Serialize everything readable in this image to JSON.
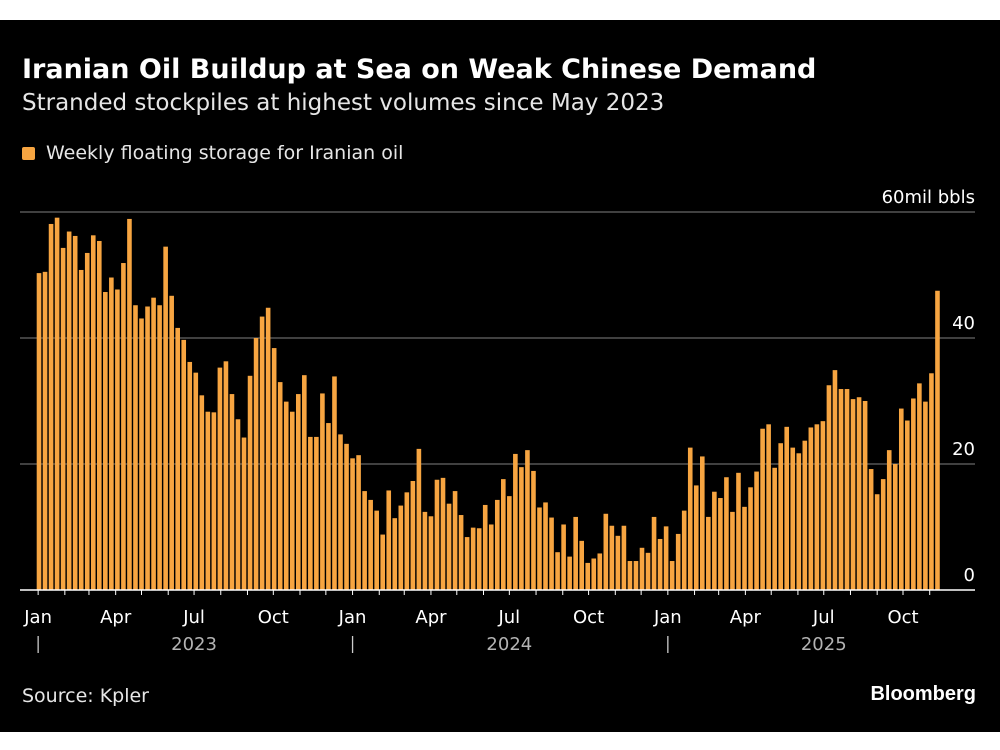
{
  "title": "Iranian Oil Buildup at Sea on Weak Chinese Demand",
  "subtitle": "Stranded stockpiles at highest volumes since May 2023",
  "source": "Source: Kpler",
  "brand": "Bloomberg",
  "colors": {
    "bar": "#f7a541",
    "background": "#000000",
    "grid": "#555555",
    "text": "#ffffff",
    "year_text": "#b3b3b3"
  },
  "chart_data": {
    "type": "bar",
    "legend": {
      "placement": "top-left",
      "entries": [
        "Weekly floating storage for Iranian oil"
      ]
    },
    "series": [
      {
        "name": "Weekly floating storage for Iranian oil"
      }
    ],
    "yunit_label": "60mil bbls",
    "ylim": [
      0,
      60
    ],
    "yticks": [
      {
        "value": 0,
        "label": "0"
      },
      {
        "value": 20,
        "label": "20"
      },
      {
        "value": 40,
        "label": "40"
      },
      {
        "value": 60,
        "label": "60mil bbls"
      }
    ],
    "grid": true,
    "yaxis_position": "right",
    "xticks": [
      {
        "date": "2023-01-01",
        "label": "Jan"
      },
      {
        "date": "2023-04-01",
        "label": "Apr"
      },
      {
        "date": "2023-07-01",
        "label": "Jul"
      },
      {
        "date": "2023-10-01",
        "label": "Oct"
      },
      {
        "date": "2024-01-01",
        "label": "Jan"
      },
      {
        "date": "2024-04-01",
        "label": "Apr"
      },
      {
        "date": "2024-07-01",
        "label": "Jul"
      },
      {
        "date": "2024-10-01",
        "label": "Oct"
      },
      {
        "date": "2025-01-01",
        "label": "Jan"
      },
      {
        "date": "2025-04-01",
        "label": "Apr"
      },
      {
        "date": "2025-07-01",
        "label": "Jul"
      },
      {
        "date": "2025-10-01",
        "label": "Oct"
      }
    ],
    "years": [
      {
        "label": "2023",
        "date": "2023-07-01"
      },
      {
        "label": "2024",
        "date": "2024-07-01"
      },
      {
        "label": "2025",
        "date": "2025-07-01"
      }
    ],
    "year_separators": [
      "2023-01-01",
      "2024-01-01",
      "2025-01-01"
    ],
    "x": [
      "2023-01-02",
      "2023-01-09",
      "2023-01-16",
      "2023-01-23",
      "2023-01-30",
      "2023-02-06",
      "2023-02-13",
      "2023-02-20",
      "2023-02-27",
      "2023-03-06",
      "2023-03-13",
      "2023-03-20",
      "2023-03-27",
      "2023-04-03",
      "2023-04-10",
      "2023-04-17",
      "2023-04-24",
      "2023-05-01",
      "2023-05-08",
      "2023-05-15",
      "2023-05-22",
      "2023-05-29",
      "2023-06-05",
      "2023-06-12",
      "2023-06-19",
      "2023-06-26",
      "2023-07-03",
      "2023-07-10",
      "2023-07-17",
      "2023-07-24",
      "2023-07-31",
      "2023-08-07",
      "2023-08-14",
      "2023-08-21",
      "2023-08-28",
      "2023-09-04",
      "2023-09-11",
      "2023-09-18",
      "2023-09-25",
      "2023-10-02",
      "2023-10-09",
      "2023-10-16",
      "2023-10-23",
      "2023-10-30",
      "2023-11-06",
      "2023-11-13",
      "2023-11-20",
      "2023-11-27",
      "2023-12-04",
      "2023-12-11",
      "2023-12-18",
      "2023-12-25",
      "2024-01-01",
      "2024-01-08",
      "2024-01-15",
      "2024-01-22",
      "2024-01-29",
      "2024-02-05",
      "2024-02-12",
      "2024-02-19",
      "2024-02-26",
      "2024-03-04",
      "2024-03-11",
      "2024-03-18",
      "2024-03-25",
      "2024-04-01",
      "2024-04-08",
      "2024-04-15",
      "2024-04-22",
      "2024-04-29",
      "2024-05-06",
      "2024-05-13",
      "2024-05-20",
      "2024-05-27",
      "2024-06-03",
      "2024-06-10",
      "2024-06-17",
      "2024-06-24",
      "2024-07-01",
      "2024-07-08",
      "2024-07-15",
      "2024-07-22",
      "2024-07-29",
      "2024-08-05",
      "2024-08-12",
      "2024-08-19",
      "2024-08-26",
      "2024-09-02",
      "2024-09-09",
      "2024-09-16",
      "2024-09-23",
      "2024-09-30",
      "2024-10-07",
      "2024-10-14",
      "2024-10-21",
      "2024-10-28",
      "2024-11-04",
      "2024-11-11",
      "2024-11-18",
      "2024-11-25",
      "2024-12-02",
      "2024-12-09",
      "2024-12-16",
      "2024-12-23",
      "2024-12-30",
      "2025-01-06",
      "2025-01-13",
      "2025-01-20",
      "2025-01-27",
      "2025-02-03",
      "2025-02-10",
      "2025-02-17",
      "2025-02-24",
      "2025-03-03",
      "2025-03-10",
      "2025-03-17",
      "2025-03-24",
      "2025-03-31",
      "2025-04-07",
      "2025-04-14",
      "2025-04-21",
      "2025-04-28",
      "2025-05-05",
      "2025-05-12",
      "2025-05-19",
      "2025-05-26",
      "2025-06-02",
      "2025-06-09",
      "2025-06-16",
      "2025-06-23",
      "2025-06-30",
      "2025-07-07",
      "2025-07-14",
      "2025-07-21",
      "2025-07-28",
      "2025-08-04",
      "2025-08-11",
      "2025-08-18",
      "2025-08-25",
      "2025-09-01",
      "2025-09-08",
      "2025-09-15",
      "2025-09-22",
      "2025-09-29",
      "2025-10-06",
      "2025-10-13",
      "2025-10-20",
      "2025-10-27",
      "2025-11-03",
      "2025-11-10"
    ],
    "values": [
      50.3,
      50.5,
      58.1,
      59.1,
      54.3,
      56.9,
      56.2,
      50.8,
      53.5,
      56.3,
      55.4,
      47.3,
      49.6,
      47.7,
      51.9,
      58.9,
      45.2,
      43.1,
      45.0,
      46.4,
      45.2,
      54.5,
      46.7,
      41.6,
      39.7,
      36.2,
      34.5,
      30.9,
      28.3,
      28.2,
      35.3,
      36.3,
      31.1,
      27.1,
      24.2,
      34.0,
      40.0,
      43.4,
      44.8,
      38.4,
      33.0,
      29.9,
      28.3,
      31.1,
      34.1,
      24.3,
      24.3,
      31.2,
      26.5,
      33.9,
      24.7,
      23.2,
      20.9,
      21.4,
      15.7,
      14.3,
      12.6,
      8.8,
      15.8,
      11.4,
      13.4,
      15.5,
      17.3,
      22.4,
      12.4,
      11.7,
      17.5,
      17.8,
      13.7,
      15.7,
      11.9,
      8.4,
      9.9,
      9.8,
      13.5,
      10.4,
      14.3,
      17.6,
      14.9,
      21.6,
      19.5,
      22.2,
      18.9,
      13.1,
      13.9,
      11.5,
      6.0,
      10.4,
      5.3,
      11.6,
      7.8,
      4.3,
      5.0,
      5.8,
      12.1,
      10.2,
      8.6,
      10.2,
      4.6,
      4.6,
      6.7,
      5.9,
      11.6,
      8.1,
      10.1,
      4.6,
      8.9,
      12.6,
      22.6,
      16.6,
      21.2,
      11.6,
      15.6,
      14.6,
      17.9,
      12.4,
      18.6,
      13.2,
      16.3,
      18.8,
      25.6,
      26.3,
      19.4,
      23.3,
      25.9,
      22.6,
      21.7,
      23.7,
      25.8,
      26.3,
      26.8,
      32.5,
      34.9,
      31.9,
      31.9,
      30.3,
      30.6,
      30.0,
      19.2,
      15.2,
      17.6,
      22.2,
      20.0,
      28.8,
      26.9,
      30.4,
      32.8,
      29.9,
      34.4,
      47.5
    ]
  }
}
